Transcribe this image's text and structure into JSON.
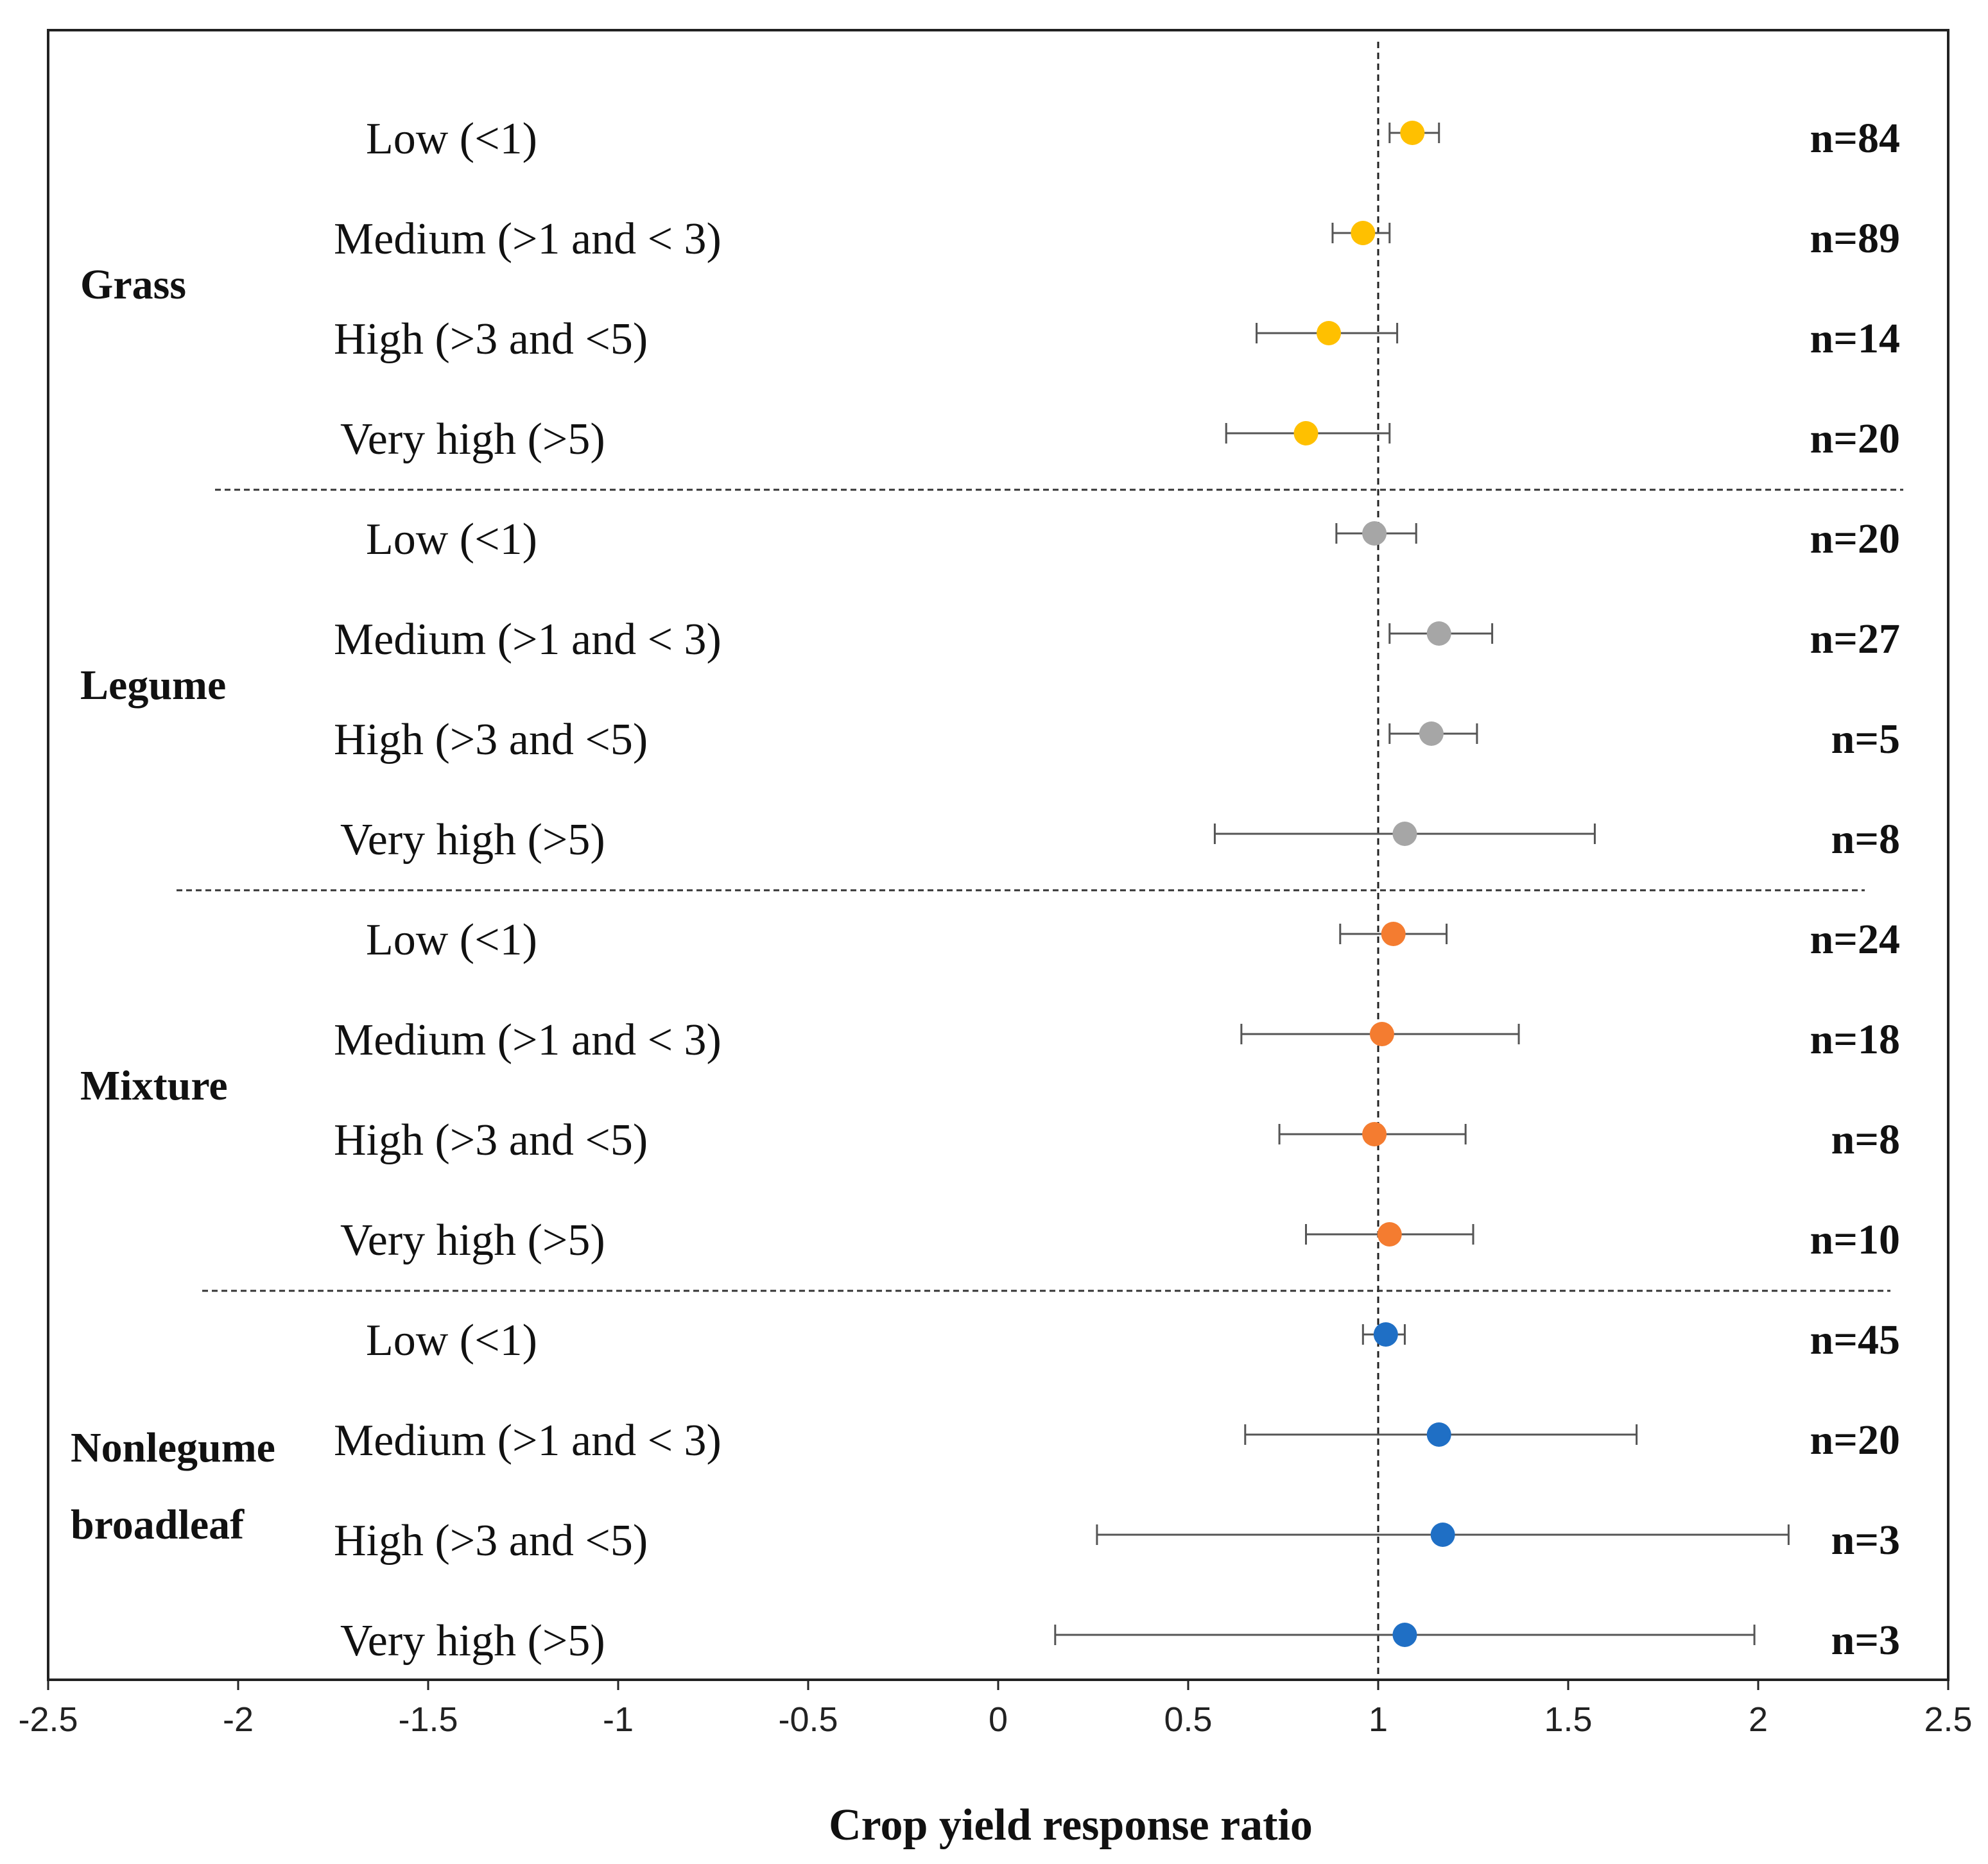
{
  "chart_data": {
    "type": "forest",
    "xlabel": "Crop yield response ratio",
    "xlim": [
      -2.5,
      2.5
    ],
    "x_ticks": [
      "-2.5",
      "-2",
      "-1.5",
      "-1",
      "-0.5",
      "0",
      "0.5",
      "1",
      "1.5",
      "2",
      "2.5"
    ],
    "reference_line": 1,
    "groups": [
      {
        "name": "Grass",
        "name_lines": [
          "Grass"
        ],
        "color": "#FFC000",
        "rows": [
          {
            "label": "Low (<1)",
            "mean": 1.09,
            "lower": 1.03,
            "upper": 1.16,
            "n": "n=84"
          },
          {
            "label": "Medium (>1 and < 3)",
            "mean": 0.96,
            "lower": 0.88,
            "upper": 1.03,
            "n": "n=89"
          },
          {
            "label": "High (>3 and <5)",
            "mean": 0.87,
            "lower": 0.68,
            "upper": 1.05,
            "n": "n=14"
          },
          {
            "label": "Very high (>5)",
            "mean": 0.81,
            "lower": 0.6,
            "upper": 1.03,
            "n": "n=20"
          }
        ]
      },
      {
        "name": "Legume",
        "name_lines": [
          "Legume"
        ],
        "color": "#A6A6A6",
        "rows": [
          {
            "label": "Low (<1)",
            "mean": 0.99,
            "lower": 0.89,
            "upper": 1.1,
            "n": "n=20"
          },
          {
            "label": "Medium (>1 and < 3)",
            "mean": 1.16,
            "lower": 1.03,
            "upper": 1.3,
            "n": "n=27"
          },
          {
            "label": "High (>3 and <5)",
            "mean": 1.14,
            "lower": 1.03,
            "upper": 1.26,
            "n": "n=5"
          },
          {
            "label": "Very high (>5)",
            "mean": 1.07,
            "lower": 0.57,
            "upper": 1.57,
            "n": "n=8"
          }
        ]
      },
      {
        "name": "Mixture",
        "name_lines": [
          "Mixture"
        ],
        "color": "#F47C30",
        "rows": [
          {
            "label": "Low (<1)",
            "mean": 1.04,
            "lower": 0.9,
            "upper": 1.18,
            "n": "n=24"
          },
          {
            "label": "Medium (>1 and < 3)",
            "mean": 1.01,
            "lower": 0.64,
            "upper": 1.37,
            "n": "n=18"
          },
          {
            "label": "High (>3 and <5)",
            "mean": 0.99,
            "lower": 0.74,
            "upper": 1.23,
            "n": "n=8"
          },
          {
            "label": "Very high (>5)",
            "mean": 1.03,
            "lower": 0.81,
            "upper": 1.25,
            "n": "n=10"
          }
        ]
      },
      {
        "name": "Nonlegume broadleaf",
        "name_lines": [
          "Nonlegume",
          "broadleaf"
        ],
        "color": "#1F6FC5",
        "rows": [
          {
            "label": "Low (<1)",
            "mean": 1.02,
            "lower": 0.96,
            "upper": 1.07,
            "n": "n=45"
          },
          {
            "label": "Medium (>1 and < 3)",
            "mean": 1.16,
            "lower": 0.65,
            "upper": 1.68,
            "n": "n=20"
          },
          {
            "label": "High (>3 and <5)",
            "mean": 1.17,
            "lower": 0.26,
            "upper": 2.08,
            "n": "n=3"
          },
          {
            "label": "Very high (>5)",
            "mean": 1.07,
            "lower": 0.15,
            "upper": 1.99,
            "n": "n=3"
          }
        ]
      }
    ]
  }
}
